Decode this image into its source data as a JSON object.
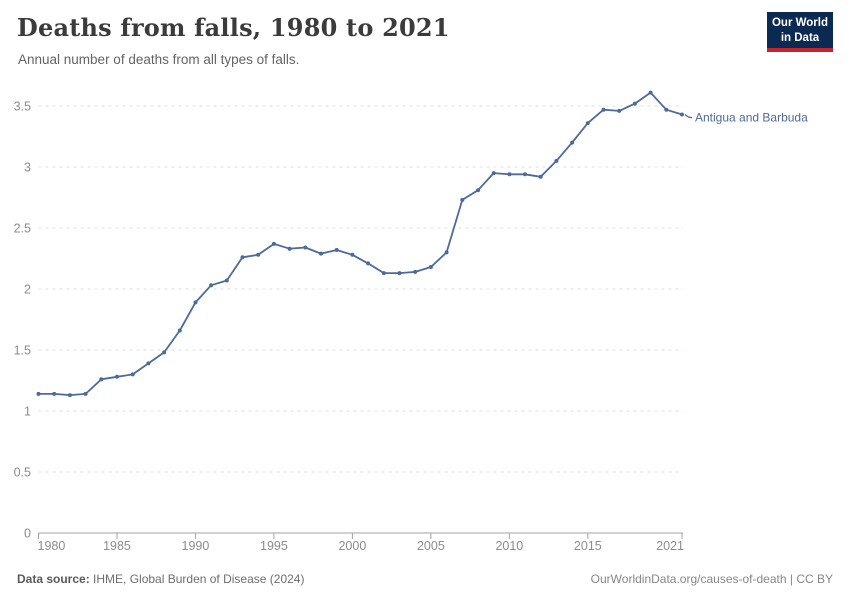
{
  "header": {
    "title": "Deaths from falls, 1980 to 2021",
    "subtitle": "Annual number of deaths from all types of falls.",
    "logo_line1": "Our World",
    "logo_line2": "in Data"
  },
  "chart_data": {
    "type": "line",
    "title": "Deaths from falls, 1980 to 2021",
    "subtitle": "Annual number of deaths from all types of falls.",
    "x": [
      1980,
      1981,
      1982,
      1983,
      1984,
      1985,
      1986,
      1987,
      1988,
      1989,
      1990,
      1991,
      1992,
      1993,
      1994,
      1995,
      1996,
      1997,
      1998,
      1999,
      2000,
      2001,
      2002,
      2003,
      2004,
      2005,
      2006,
      2007,
      2008,
      2009,
      2010,
      2011,
      2012,
      2013,
      2014,
      2015,
      2016,
      2017,
      2018,
      2019,
      2020,
      2021
    ],
    "series": [
      {
        "name": "Antigua and Barbuda",
        "color": "#4c6a9c",
        "values": [
          1.14,
          1.14,
          1.13,
          1.14,
          1.26,
          1.28,
          1.3,
          1.39,
          1.48,
          1.66,
          1.89,
          2.03,
          2.07,
          2.26,
          2.28,
          2.37,
          2.33,
          2.34,
          2.29,
          2.32,
          2.28,
          2.21,
          2.13,
          2.13,
          2.14,
          2.18,
          2.3,
          2.73,
          2.81,
          2.95,
          2.94,
          2.94,
          2.92,
          3.05,
          3.2,
          3.36,
          3.47,
          3.46,
          3.52,
          3.61,
          3.47,
          3.43
        ]
      }
    ],
    "xlim": [
      1980,
      2021
    ],
    "ylim": [
      0,
      3.5
    ],
    "x_ticks": [
      1980,
      1985,
      1990,
      1995,
      2000,
      2005,
      2010,
      2015,
      2021
    ],
    "y_ticks": [
      0,
      0.5,
      1,
      1.5,
      2,
      2.5,
      3,
      3.5
    ],
    "grid": "horizontal-dashed",
    "legend_position": "line-end-label"
  },
  "colors": {
    "line": "#4c6a9c",
    "grid": "#dedede",
    "axis": "#a3a3a3",
    "tick_label": "#8c8c8c",
    "title": "#3b3b3b",
    "subtitle": "#646464",
    "logo_bg": "#0b2a52",
    "logo_accent": "#c7242b"
  },
  "footer": {
    "source_label": "Data source:",
    "source_text": " IHME, Global Burden of Disease (2024)",
    "credit": "OurWorldinData.org/causes-of-death | CC BY"
  }
}
